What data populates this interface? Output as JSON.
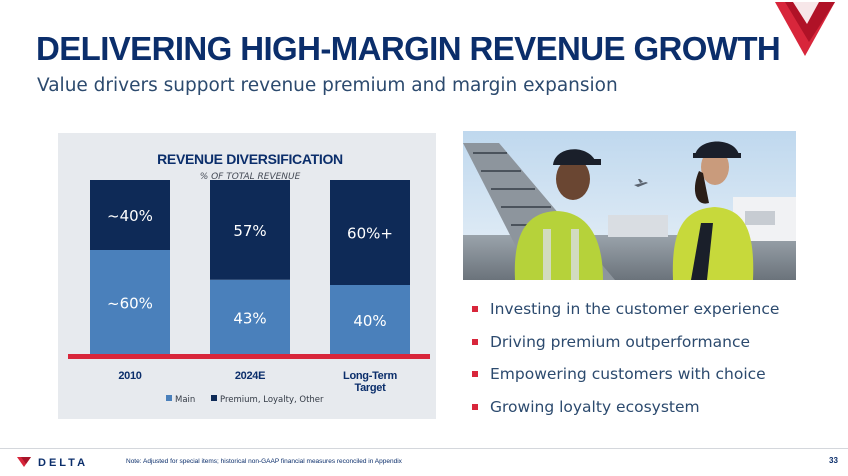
{
  "slide": {
    "title": "DELIVERING HIGH-MARGIN REVENUE GROWTH",
    "subtitle": "Value drivers support revenue premium and margin expansion"
  },
  "colors": {
    "navy": "#0b2e6b",
    "bar_dark": "#0e2a57",
    "bar_light": "#4a80bb",
    "accent_red": "#d8263b",
    "panel": "#e7eaee"
  },
  "chart_data": {
    "type": "bar",
    "stacked": true,
    "title": "REVENUE DIVERSIFICATION",
    "subtitle": "% OF TOTAL REVENUE",
    "categories": [
      "2010",
      "2024E",
      "Long-Term Target"
    ],
    "series": [
      {
        "name": "Main",
        "values": [
          60,
          43,
          40
        ],
        "labels": [
          "~60%",
          "43%",
          "40%"
        ],
        "color": "#4a80bb"
      },
      {
        "name": "Premium, Loyalty, Other",
        "values": [
          40,
          57,
          60
        ],
        "labels": [
          "~40%",
          "57%",
          "60%+"
        ],
        "color": "#0e2a57"
      }
    ],
    "legend": "bottom",
    "grid": false
  },
  "photo": {
    "icons": [
      "airplane-icon"
    ]
  },
  "bullets": [
    "Investing in the customer experience",
    "Driving premium outperformance",
    "Empowering customers with choice",
    "Growing loyalty ecosystem"
  ],
  "footer": {
    "logo_text": "DELTA",
    "note": "Note: Adjusted for special items; historical non-GAAP financial measures reconciled in Appendix",
    "page_number": "33"
  }
}
